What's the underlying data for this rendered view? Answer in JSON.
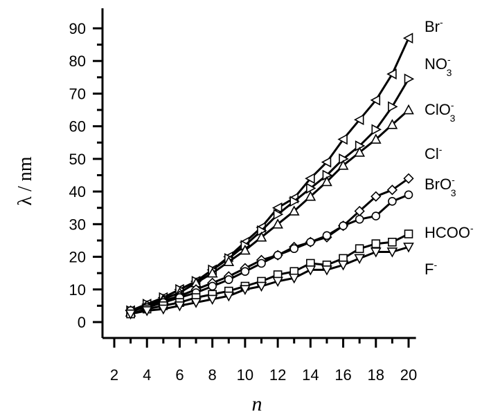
{
  "chart_data": {
    "type": "line",
    "xlabel": "n",
    "ylabel": "λ / nm",
    "xlim": [
      1.5,
      20.5
    ],
    "ylim": [
      0,
      95
    ],
    "x_ticks": [
      2,
      4,
      6,
      8,
      10,
      12,
      14,
      16,
      18,
      20
    ],
    "y_ticks": [
      0,
      10,
      20,
      30,
      40,
      50,
      60,
      70,
      80,
      90
    ],
    "x": [
      3,
      4,
      5,
      6,
      7,
      8,
      9,
      10,
      11,
      12,
      13,
      14,
      15,
      16,
      17,
      18,
      19,
      20
    ],
    "series": [
      {
        "name": "Br-",
        "marker": "triangle-left",
        "values": [
          3.5,
          5.5,
          7.5,
          10,
          12.5,
          16,
          20,
          24.5,
          29,
          35,
          38,
          44,
          49,
          56,
          62,
          68,
          76,
          87
        ]
      },
      {
        "name": "NO3-",
        "marker": "triangle-right",
        "values": [
          3.5,
          5.5,
          7.5,
          10,
          12.5,
          16,
          19.5,
          23.5,
          28,
          33,
          37,
          41,
          45,
          50,
          54,
          59,
          66,
          74.5
        ]
      },
      {
        "name": "ClO3-",
        "marker": "triangle-up",
        "values": [
          3,
          5,
          7,
          9,
          12,
          15,
          18.5,
          22,
          26,
          30,
          34,
          38.5,
          43,
          48,
          52,
          56,
          60.5,
          65
        ]
      },
      {
        "name": "Cl-",
        "marker": "diamond",
        "values": [
          3.5,
          5,
          6.5,
          8,
          10,
          12,
          14,
          16.5,
          19,
          20.5,
          23,
          24.5,
          26,
          29.5,
          34,
          38.5,
          40.5,
          44
        ]
      },
      {
        "name": "BrO3-",
        "marker": "circle",
        "values": [
          3.5,
          4.5,
          6,
          7.5,
          9,
          11,
          13,
          15.5,
          18,
          20.5,
          22.5,
          24.5,
          26.5,
          29.5,
          31.5,
          32.5,
          37,
          39
        ]
      },
      {
        "name": "HCOO-",
        "marker": "square",
        "values": [
          2.5,
          4,
          5,
          6,
          7.5,
          8.5,
          9.5,
          11,
          12.5,
          14.5,
          15.5,
          18,
          17.5,
          19.5,
          22.5,
          24,
          24.5,
          27
        ]
      },
      {
        "name": "F-",
        "marker": "triangle-down",
        "values": [
          2.5,
          3.5,
          4,
          5,
          6,
          7,
          8,
          10,
          11,
          12.5,
          13.5,
          16,
          16,
          17.5,
          19.5,
          21.5,
          21.5,
          23
        ]
      }
    ],
    "legend_placement": "right, next to line ends",
    "labels": [
      {
        "base": "Br",
        "sup": "-",
        "sub": ""
      },
      {
        "base": "NO",
        "sup": "-",
        "sub": "3"
      },
      {
        "base": "ClO",
        "sup": "-",
        "sub": "3"
      },
      {
        "base": "Cl",
        "sup": "-",
        "sub": ""
      },
      {
        "base": "BrO",
        "sup": "-",
        "sub": "3"
      },
      {
        "base": "HCOO",
        "sup": "-",
        "sub": ""
      },
      {
        "base": "F",
        "sup": "-",
        "sub": ""
      }
    ],
    "grid": false
  }
}
